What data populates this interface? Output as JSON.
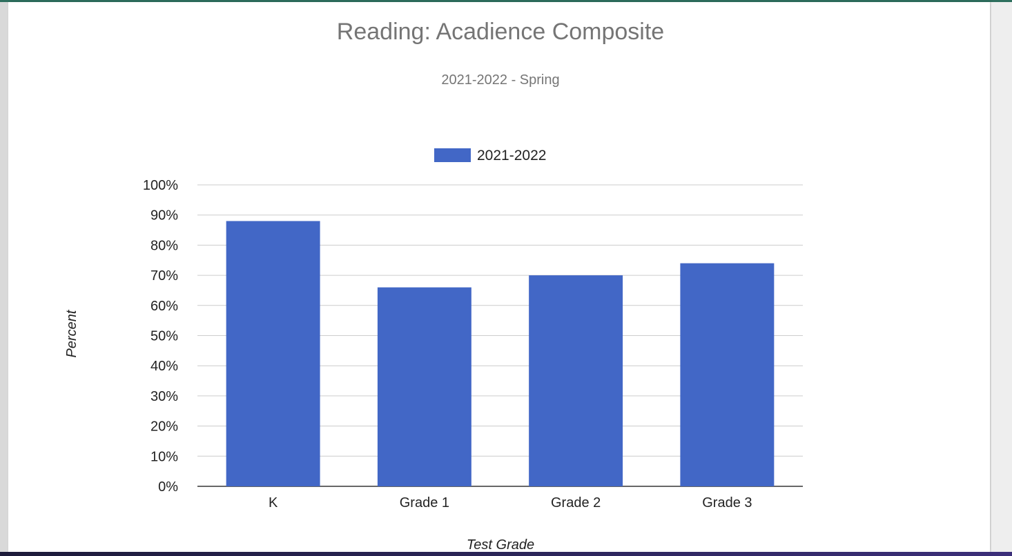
{
  "chart_data": {
    "type": "bar",
    "title": "Reading: Acadience Composite",
    "subtitle": "2021-2022 - Spring",
    "xlabel": "Test Grade",
    "ylabel": "Percent",
    "categories": [
      "K",
      "Grade 1",
      "Grade 2",
      "Grade 3"
    ],
    "series": [
      {
        "name": "2021-2022",
        "values": [
          88,
          66,
          70,
          74
        ],
        "color": "#4267c6"
      }
    ],
    "ylim": [
      0,
      100
    ],
    "yticks": [
      "0%",
      "10%",
      "20%",
      "30%",
      "40%",
      "50%",
      "60%",
      "70%",
      "80%",
      "90%",
      "100%"
    ],
    "grid": true,
    "legend_position": "top-center"
  }
}
